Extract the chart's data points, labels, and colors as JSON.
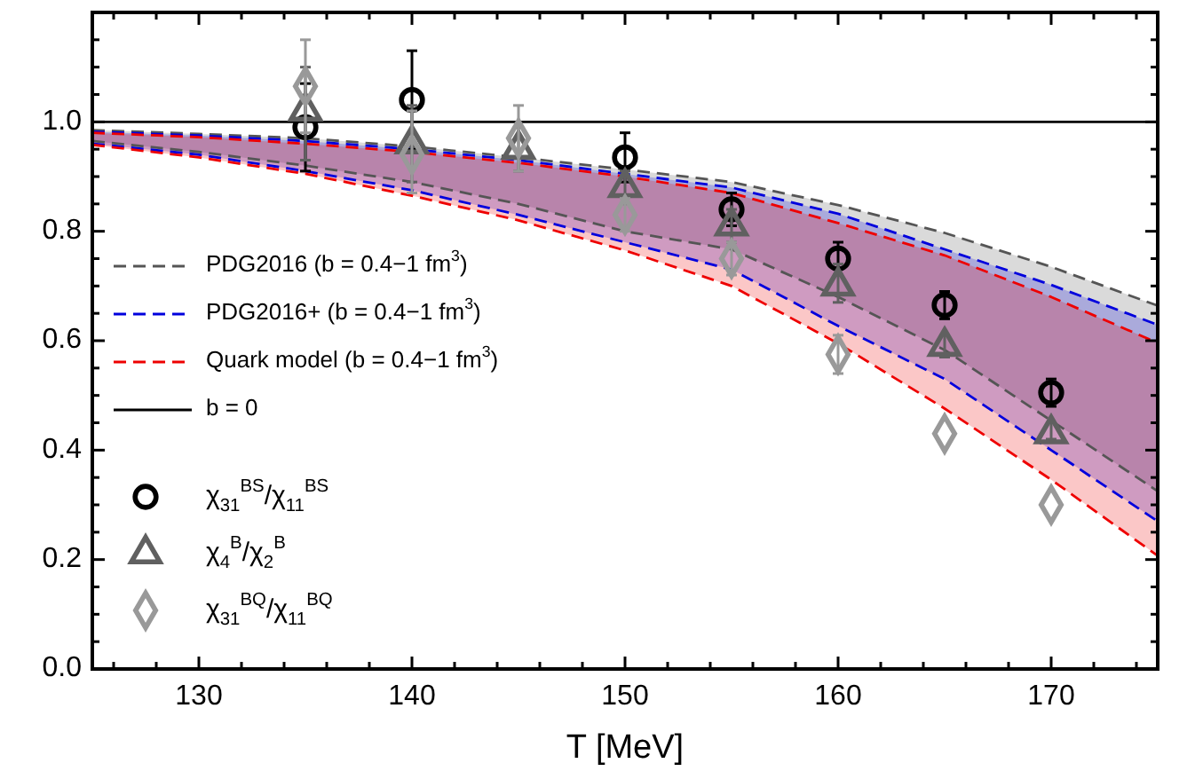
{
  "chart_data": {
    "type": "line",
    "xlabel": "T [MeV]",
    "xlim": [
      125,
      175
    ],
    "ylim": [
      0,
      1.2
    ],
    "xticks": [
      {
        "value": 126,
        "label": null
      },
      {
        "value": 128,
        "label": null
      },
      130,
      {
        "value": 132,
        "label": null
      },
      {
        "value": 134,
        "label": null
      },
      {
        "value": 136,
        "label": null
      },
      {
        "value": 138,
        "label": null
      },
      140,
      {
        "value": 142,
        "label": null
      },
      {
        "value": 144,
        "label": null
      },
      {
        "value": 146,
        "label": null
      },
      {
        "value": 148,
        "label": null
      },
      150,
      {
        "value": 152,
        "label": null
      },
      {
        "value": 154,
        "label": null
      },
      {
        "value": 156,
        "label": null
      },
      {
        "value": 158,
        "label": null
      },
      160,
      {
        "value": 162,
        "label": null
      },
      {
        "value": 164,
        "label": null
      },
      {
        "value": 166,
        "label": null
      },
      {
        "value": 168,
        "label": null
      },
      170,
      {
        "value": 172,
        "label": null
      },
      {
        "value": 174,
        "label": null
      }
    ],
    "yticks": [
      {
        "value": 0,
        "label": "0.0"
      },
      {
        "value": 0.05,
        "label": null
      },
      {
        "value": 0.1,
        "label": null
      },
      {
        "value": 0.15,
        "label": null
      },
      {
        "value": 0.2,
        "label": "0.2"
      },
      {
        "value": 0.25,
        "label": null
      },
      {
        "value": 0.3,
        "label": null
      },
      {
        "value": 0.35,
        "label": null
      },
      {
        "value": 0.4,
        "label": "0.4"
      },
      {
        "value": 0.45,
        "label": null
      },
      {
        "value": 0.5,
        "label": null
      },
      {
        "value": 0.55,
        "label": null
      },
      {
        "value": 0.6,
        "label": "0.6"
      },
      {
        "value": 0.65,
        "label": null
      },
      {
        "value": 0.7,
        "label": null
      },
      {
        "value": 0.75,
        "label": null
      },
      {
        "value": 0.8,
        "label": "0.8"
      },
      {
        "value": 0.85,
        "label": null
      },
      {
        "value": 0.9,
        "label": null
      },
      {
        "value": 0.95,
        "label": null
      },
      {
        "value": 1.0,
        "label": "1.0"
      },
      {
        "value": 1.05,
        "label": null
      },
      {
        "value": 1.1,
        "label": null
      },
      {
        "value": 1.15,
        "label": null
      }
    ],
    "x": [
      125,
      130,
      135,
      140,
      145,
      150,
      155,
      160,
      165,
      170,
      175
    ],
    "grid": false,
    "legend": "left",
    "line_style": "dashed",
    "series": [
      {
        "name": "PDG2016 (b = 0.4−1 fm$^{3}$)",
        "color": "#555555",
        "values": [
          0.985,
          0.978,
          0.97,
          0.955,
          0.935,
          0.913,
          0.89,
          0.848,
          0.797,
          0.735,
          0.664
        ],
        "upper": [
          0.985,
          0.978,
          0.97,
          0.955,
          0.935,
          0.913,
          0.89,
          0.848,
          0.797,
          0.735,
          0.664
        ],
        "lower": [
          0.965,
          0.945,
          0.92,
          0.89,
          0.85,
          0.8,
          0.767,
          0.68,
          0.583,
          0.454,
          0.325
        ]
      },
      {
        "name": "PDG2016+ (b = 0.4−1 fm$^{3}$)",
        "color": "#0000dd",
        "values": [
          0.982,
          0.975,
          0.965,
          0.95,
          0.93,
          0.905,
          0.88,
          0.832,
          0.767,
          0.702,
          0.629
        ],
        "upper": [
          0.982,
          0.975,
          0.965,
          0.95,
          0.93,
          0.905,
          0.88,
          0.832,
          0.767,
          0.702,
          0.629
        ],
        "lower": [
          0.96,
          0.94,
          0.91,
          0.875,
          0.83,
          0.78,
          0.73,
          0.627,
          0.53,
          0.4,
          0.27
        ]
      },
      {
        "name": "Quark model (b = 0.4−1 fm$^{3}$)",
        "color": "#ee0000",
        "values": [
          0.98,
          0.972,
          0.96,
          0.945,
          0.925,
          0.9,
          0.87,
          0.815,
          0.756,
          0.68,
          0.596
        ],
        "upper": [
          0.98,
          0.972,
          0.96,
          0.945,
          0.925,
          0.9,
          0.87,
          0.815,
          0.756,
          0.68,
          0.596
        ],
        "lower": [
          0.958,
          0.935,
          0.905,
          0.865,
          0.82,
          0.765,
          0.7,
          0.595,
          0.476,
          0.346,
          0.207
        ]
      },
      {
        "color": "#555555",
        "values": [
          0.965,
          0.945,
          0.92,
          0.89,
          0.85,
          0.8,
          0.767,
          0.68,
          0.583,
          0.454,
          0.325
        ]
      },
      {
        "color": "#0000dd",
        "values": [
          0.96,
          0.94,
          0.91,
          0.875,
          0.83,
          0.78,
          0.73,
          0.627,
          0.53,
          0.4,
          0.27
        ]
      },
      {
        "color": "#ee0000",
        "values": [
          0.958,
          0.935,
          0.905,
          0.865,
          0.82,
          0.765,
          0.7,
          0.595,
          0.476,
          0.346,
          0.207
        ]
      },
      {
        "name": "b = 0",
        "color": "#000000",
        "line_style": "solid",
        "x": [
          125,
          175
        ],
        "values": [
          1,
          1
        ]
      },
      {
        "type": "scatter",
        "marker": "circle",
        "name": "χ$_{31}$$^{BS}$/χ$_{11}$$^{BS}$",
        "color": "#000000",
        "x": [
          135,
          140,
          150,
          155,
          160,
          165,
          170
        ],
        "values": [
          0.99,
          1.04,
          0.935,
          0.84,
          0.75,
          0.665,
          0.505
        ],
        "errors": [
          [
            0.91,
            1.07
          ],
          [
            0.95,
            1.13
          ],
          [
            0.89,
            0.98
          ],
          [
            0.81,
            0.87
          ],
          [
            0.72,
            0.78
          ],
          [
            0.64,
            0.69
          ],
          [
            0.48,
            0.53
          ]
        ]
      },
      {
        "type": "scatter",
        "marker": "triangle",
        "name": "χ$_{4}$$^{B}$/χ$_{2}$$^{B}$",
        "color": "#606060",
        "x": [
          135,
          140,
          145,
          150,
          155,
          160,
          165,
          170
        ],
        "values": [
          1.02,
          0.96,
          0.95,
          0.88,
          0.81,
          0.7,
          0.59,
          0.43
        ],
        "errors": [
          [
            0.93,
            1.1
          ],
          [
            0.89,
            1.03
          ],
          [
            0.91,
            0.99
          ],
          [
            0.85,
            0.91
          ],
          [
            0.78,
            0.84
          ],
          [
            0.67,
            0.74
          ],
          [
            0.57,
            0.61
          ],
          [
            0.42,
            0.45
          ]
        ]
      },
      {
        "type": "scatter",
        "marker": "diamond",
        "name": "χ$_{31}$$^{BQ}$/χ$_{11}$$^{BQ}$",
        "color": "#999999",
        "x": [
          135,
          140,
          145,
          150,
          155,
          160,
          165,
          170
        ],
        "values": [
          1.065,
          0.94,
          0.97,
          0.83,
          0.75,
          0.575,
          0.43,
          0.3
        ],
        "errors": [
          [
            0.98,
            1.15
          ],
          [
            0.87,
            1.02
          ],
          [
            0.91,
            1.03
          ],
          [
            0.8,
            0.86
          ],
          [
            0.72,
            0.78
          ],
          [
            0.54,
            0.61
          ],
          null,
          null
        ]
      }
    ]
  }
}
